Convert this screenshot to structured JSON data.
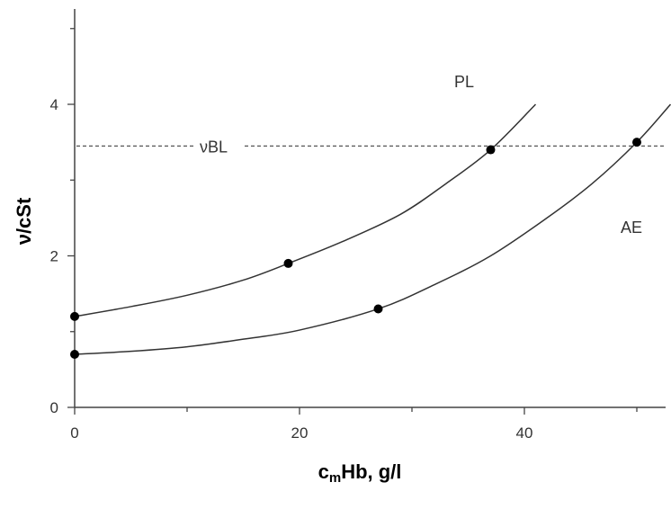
{
  "chart_data": {
    "type": "line",
    "xlabel_main": "c",
    "xlabel_sub": "m",
    "xlabel_rest": "Hb, g/l",
    "ylabel": "ν/cSt",
    "xlim": [
      0,
      53
    ],
    "ylim": [
      0,
      5.2
    ],
    "x_ticks": [
      0,
      20,
      40
    ],
    "x_tick_labels": [
      "0",
      "20",
      "40"
    ],
    "y_ticks": [
      0,
      2,
      4
    ],
    "y_tick_labels": [
      "0",
      "2",
      "4"
    ],
    "grid": false,
    "series": [
      {
        "label": "PL",
        "points": [
          [
            0,
            1.2
          ],
          [
            19,
            1.9
          ],
          [
            37,
            3.4
          ]
        ],
        "curve": [
          [
            0,
            1.2
          ],
          [
            5,
            1.33
          ],
          [
            10,
            1.48
          ],
          [
            15,
            1.68
          ],
          [
            19,
            1.9
          ],
          [
            24,
            2.2
          ],
          [
            29,
            2.55
          ],
          [
            33,
            2.95
          ],
          [
            37,
            3.4
          ],
          [
            41,
            4.0
          ]
        ]
      },
      {
        "label": "AE",
        "points": [
          [
            0,
            0.7
          ],
          [
            27,
            1.3
          ],
          [
            50,
            3.5
          ]
        ],
        "curve": [
          [
            0,
            0.7
          ],
          [
            5,
            0.74
          ],
          [
            10,
            0.8
          ],
          [
            15,
            0.9
          ],
          [
            20,
            1.02
          ],
          [
            27,
            1.3
          ],
          [
            32,
            1.62
          ],
          [
            37,
            2.0
          ],
          [
            42,
            2.5
          ],
          [
            46,
            2.95
          ],
          [
            50,
            3.5
          ],
          [
            53,
            4.0
          ]
        ]
      }
    ],
    "reference_line": {
      "label": "νBL",
      "y": 3.45
    },
    "annotations": [
      "PL",
      "AE",
      "νBL"
    ]
  }
}
